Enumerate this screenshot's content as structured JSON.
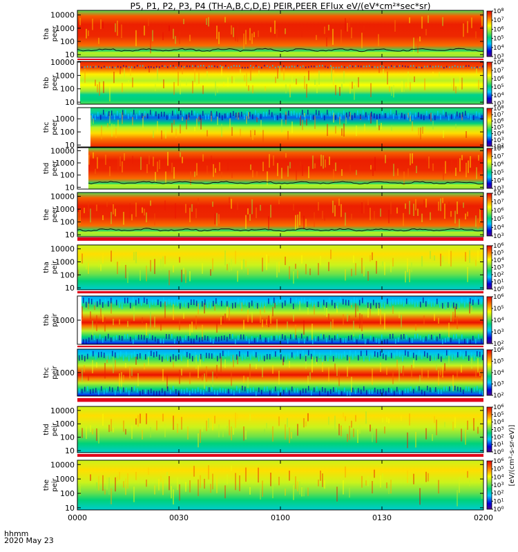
{
  "title": "P5, P1, P2, P3, P4 (TH-A,B,C,D,E) PEIR,PEER EFlux eV/(eV*cm²*sec*sr)",
  "colorbar_units": "[eV/(cm²-s-sr-eV)]",
  "time_axis_label": "hhmm",
  "date_label": "2020 May 23",
  "chart_data": {
    "type": "heatmap",
    "x_ticks": [
      "0000",
      "0030",
      "0100",
      "0130",
      "0200"
    ],
    "x_range_hhmm": [
      "0000",
      "0200"
    ],
    "panels": [
      {
        "probe": "tha",
        "species": "peer",
        "yticks": [
          "10",
          "100",
          "1000",
          "10000"
        ],
        "yscale": "log",
        "colorbar_min_exp": 3,
        "colorbar_max_exp": 8
      },
      {
        "probe": "thb",
        "species": "peer",
        "yticks": [
          "10",
          "100",
          "1000",
          "10000"
        ],
        "yscale": "log",
        "colorbar_min_exp": 3,
        "colorbar_max_exp": 8
      },
      {
        "probe": "thc",
        "species": "peer",
        "yticks": [
          "10",
          "100",
          "1000",
          "10000"
        ],
        "yscale": "log",
        "colorbar_min_exp": 2,
        "colorbar_max_exp": 8
      },
      {
        "probe": "thd",
        "species": "peer",
        "yticks": [
          "10",
          "100",
          "1000",
          "10000"
        ],
        "yscale": "log",
        "colorbar_min_exp": 3,
        "colorbar_max_exp": 8
      },
      {
        "probe": "the",
        "species": "peer",
        "yticks": [
          "10",
          "100",
          "1000",
          "10000"
        ],
        "yscale": "log",
        "colorbar_min_exp": 3,
        "colorbar_max_exp": 8
      },
      {
        "probe": "tha",
        "species": "peir",
        "yticks": [
          "10",
          "100",
          "1000",
          "10000"
        ],
        "yscale": "log",
        "colorbar_min_exp": 0,
        "colorbar_max_exp": 6
      },
      {
        "probe": "thb",
        "species": "peir",
        "yticks": [
          "1000"
        ],
        "yscale": "log",
        "colorbar_min_exp": 2,
        "colorbar_max_exp": 6
      },
      {
        "probe": "thc",
        "species": "peir",
        "yticks": [
          "1000"
        ],
        "yscale": "log",
        "colorbar_min_exp": 2,
        "colorbar_max_exp": 6
      },
      {
        "probe": "thd",
        "species": "peir",
        "yticks": [
          "10",
          "100",
          "1000",
          "10000"
        ],
        "yscale": "log",
        "colorbar_min_exp": 0,
        "colorbar_max_exp": 6
      },
      {
        "probe": "the",
        "species": "peir",
        "yticks": [
          "10",
          "100",
          "1000",
          "10000"
        ],
        "yscale": "log",
        "colorbar_min_exp": 0,
        "colorbar_max_exp": 6
      }
    ]
  }
}
